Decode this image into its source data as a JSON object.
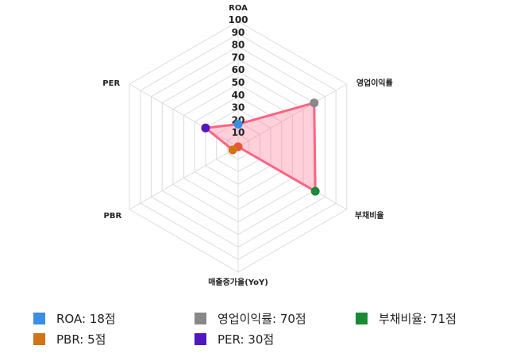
{
  "chart_data": {
    "type": "radar",
    "axes": [
      "ROA",
      "영업이익률",
      "부채비율",
      "매출증가율(YoY)",
      "PBR",
      "PER"
    ],
    "values": [
      18,
      70,
      71,
      0,
      5,
      30
    ],
    "point_colors": [
      "#3a8ee6",
      "#888888",
      "#1a8a36",
      "#e8553a",
      "#cf7417",
      "#5018c0"
    ],
    "rlim": [
      0,
      100
    ],
    "r_ticks": [
      "10",
      "20",
      "30",
      "40",
      "50",
      "60",
      "70",
      "80",
      "90",
      "100"
    ],
    "grid": true,
    "line_color": "#ff6384",
    "fill_color": "rgba(255,99,132,0.3)",
    "legend_position": "bottom"
  },
  "legend": [
    {
      "label": "ROA: 18점",
      "color": "#3a8ee6"
    },
    {
      "label": "영업이익률: 70점",
      "color": "#888888"
    },
    {
      "label": "부채비율: 71점",
      "color": "#1a8a36"
    },
    {
      "label": "PBR: 5점",
      "color": "#cf7417"
    },
    {
      "label": "PER: 30점",
      "color": "#5018c0"
    }
  ]
}
